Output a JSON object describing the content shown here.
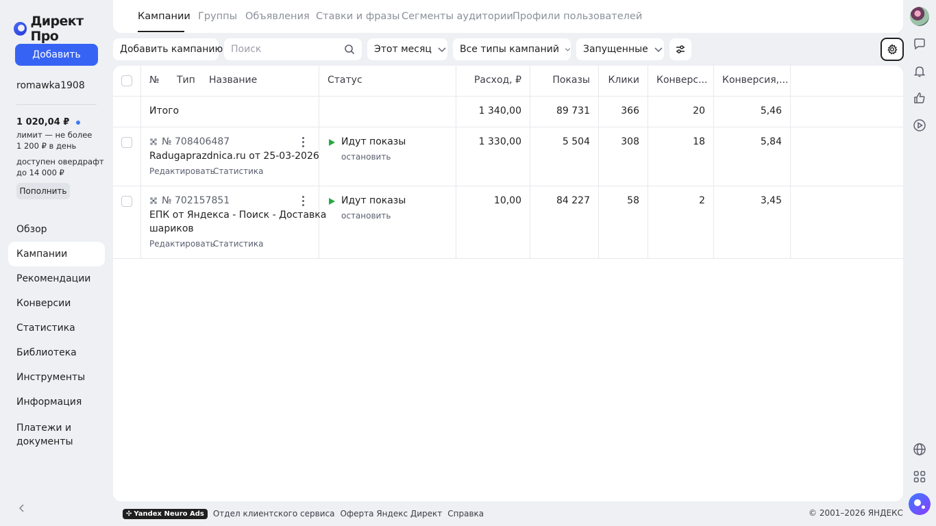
{
  "sidebar": {
    "logo_text": "Директ Про",
    "add_button": "Добавить",
    "username": "romawka1908",
    "balance": "1 020,04 ₽",
    "limit_line1": "лимит — не более",
    "limit_line2": "1 200 ₽ в день",
    "overdraft_line1": "доступен овердрафт",
    "overdraft_line2": "до 14 000 ₽",
    "topup_button": "Пополнить",
    "nav": [
      {
        "label": "Обзор"
      },
      {
        "label": "Кампании",
        "active": true
      },
      {
        "label": "Рекомендации"
      },
      {
        "label": "Конверсии"
      },
      {
        "label": "Статистика"
      },
      {
        "label": "Библиотека"
      },
      {
        "label": "Инструменты"
      },
      {
        "label": "Информация"
      },
      {
        "label": "Платежи и документы"
      }
    ]
  },
  "tabs": [
    "Кампании",
    "Группы",
    "Объявления",
    "Ставки и фразы",
    "Сегменты аудитории",
    "Профили пользователей"
  ],
  "toolbar": {
    "add_campaign": "Добавить кампанию",
    "search_placeholder": "Поиск",
    "period": "Этот месяц",
    "campaign_types": "Все типы кампаний",
    "status_filter": "Запущенные"
  },
  "table": {
    "headers": {
      "num": "№",
      "type": "Тип",
      "name": "Название",
      "status": "Статус",
      "spend": "Расход, ₽",
      "impressions": "Показы",
      "clicks": "Клики",
      "conversions": "Конверс...",
      "conversion_rate": "Конверсия,..."
    },
    "total": {
      "label": "Итого",
      "spend": "1 340,00",
      "impressions": "89 731",
      "clicks": "366",
      "conversions": "20",
      "conversion_rate": "5,46"
    },
    "rows": [
      {
        "id": "№ 708406487",
        "name": "Radugaprazdnica.ru от 25-03-2026",
        "edit": "Редактировать",
        "stats": "Статистика",
        "status": "Идут показы",
        "stop": "остановить",
        "spend": "1 330,00",
        "impressions": "5 504",
        "clicks": "308",
        "conversions": "18",
        "conversion_rate": "5,84"
      },
      {
        "id": "№ 702157851",
        "name_line1": "ЕПК от Яндекса - Поиск - Доставка",
        "name_line2": "шариков",
        "edit": "Редактировать",
        "stats": "Статистика",
        "status": "Идут показы",
        "stop": "остановить",
        "spend": "10,00",
        "impressions": "84 227",
        "clicks": "58",
        "conversions": "2",
        "conversion_rate": "3,45"
      }
    ]
  },
  "footer": {
    "badge": "Yandex Neuro Ads",
    "links": [
      "Отдел клиентского сервиса",
      "Оферта Яндекс Директ",
      "Справка"
    ],
    "copyright": "© 2001–2026 ЯНДЕКС"
  },
  "colors": {
    "accent": "#3763f4",
    "status_active": "#27a844",
    "background": "#eef0f4"
  },
  "icons": [
    "search-icon",
    "chevron-down-icon",
    "filter-sliders-icon",
    "settings-gear-icon",
    "chat-icon",
    "bell-icon",
    "thumbs-up-icon",
    "play-circle-icon",
    "globe-icon",
    "apps-grid-icon",
    "alice-assistant-icon",
    "kebab-menu-icon",
    "campaign-type-icon",
    "collapse-chevron-icon"
  ]
}
